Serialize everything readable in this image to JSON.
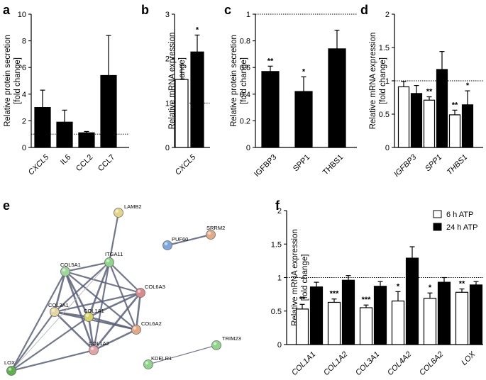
{
  "figure": {
    "panel_letters": [
      "a",
      "b",
      "c",
      "d",
      "e",
      "f"
    ],
    "legend": [
      {
        "label": "6 h ATP",
        "color": "#ffffff"
      },
      {
        "label": "24 h ATP",
        "color": "#000000"
      }
    ],
    "colors": {
      "bar_dark": "#000000",
      "bar_light": "#ffffff",
      "axis": "#000000"
    }
  },
  "chart_data": [
    {
      "id": "a",
      "type": "bar",
      "ylabel_lines": [
        "Relative protein secretion",
        "[fold change]"
      ],
      "ylim": [
        0,
        10
      ],
      "yticks": [
        0,
        2,
        4,
        6,
        8,
        10
      ],
      "reference_line": 1,
      "categories": [
        "CXCL5",
        "IL6",
        "CCL2",
        "CCL7"
      ],
      "category_italic": [
        true,
        false,
        false,
        false
      ],
      "series": [
        {
          "name": "24 h ATP",
          "values": [
            3.0,
            1.9,
            1.1,
            5.4
          ],
          "errors": [
            1.3,
            0.9,
            0.1,
            3.0
          ]
        }
      ],
      "significance": [
        {
          "series": 0,
          "text": [
            "",
            "",
            "",
            ""
          ]
        }
      ]
    },
    {
      "id": "b",
      "type": "bar",
      "ylabel_lines": [
        "Relative mRNA expression",
        "[fold change]"
      ],
      "ylim": [
        0,
        3
      ],
      "yticks": [
        0,
        1,
        2,
        3
      ],
      "reference_line": 1,
      "categories": [
        "CXCL5"
      ],
      "category_italic": [
        true
      ],
      "series": [
        {
          "name": "6 h ATP",
          "values": [
            1.53
          ],
          "errors": [
            0.33
          ]
        },
        {
          "name": "24 h ATP",
          "values": [
            2.15
          ],
          "errors": [
            0.38
          ]
        }
      ],
      "significance": [
        {
          "series": 1,
          "text": [
            "*"
          ]
        }
      ]
    },
    {
      "id": "c",
      "type": "bar",
      "ylabel_lines": [
        "Relative protein secretion",
        "[fold change]"
      ],
      "ylim": [
        0,
        1.0
      ],
      "yticks": [
        0,
        0.2,
        0.4,
        0.6,
        0.8,
        1.0
      ],
      "reference_line": 1.0,
      "categories": [
        "IGFBP3",
        "SPP1",
        "THBS1"
      ],
      "category_italic": [
        false,
        false,
        false
      ],
      "series": [
        {
          "name": "24 h ATP",
          "values": [
            0.57,
            0.42,
            0.74
          ],
          "errors": [
            0.04,
            0.11,
            0.14
          ]
        }
      ],
      "significance": [
        {
          "series": 0,
          "text": [
            "**",
            "*",
            ""
          ]
        }
      ]
    },
    {
      "id": "d",
      "type": "bar",
      "ylabel_lines": [
        "Relative mRNA expression",
        "[fold change]"
      ],
      "ylim": [
        0,
        2.0
      ],
      "yticks": [
        0,
        0.5,
        1.0,
        1.5,
        2.0
      ],
      "reference_line": 1.0,
      "categories": [
        "IGFBP3",
        "SPP1",
        "THBS1"
      ],
      "category_italic": [
        true,
        true,
        true
      ],
      "series": [
        {
          "name": "6 h ATP",
          "values": [
            0.91,
            0.71,
            0.49
          ],
          "errors": [
            0.08,
            0.05,
            0.07
          ]
        },
        {
          "name": "24 h ATP",
          "values": [
            0.81,
            1.17,
            0.64
          ],
          "errors": [
            0.12,
            0.27,
            0.21
          ]
        }
      ],
      "significance": [
        {
          "series": 0,
          "text": [
            "",
            "**",
            "**"
          ]
        },
        {
          "series": 1,
          "text": [
            "",
            "",
            "*"
          ]
        }
      ]
    },
    {
      "id": "e",
      "type": "network",
      "nodes": [
        {
          "name": "LAMB2",
          "color": "#e3d48a"
        },
        {
          "name": "ITGA11",
          "color": "#8fd48a"
        },
        {
          "name": "PUF60",
          "color": "#7ea7dd"
        },
        {
          "name": "SRRM2",
          "color": "#e0aa86"
        },
        {
          "name": "COL5A1",
          "color": "#9ed79a"
        },
        {
          "name": "COL6A3",
          "color": "#d98a8e"
        },
        {
          "name": "COL3A1",
          "color": "#e4d6a0"
        },
        {
          "name": "COL1A1",
          "color": "#d6d26a"
        },
        {
          "name": "COL6A2",
          "color": "#e4a887"
        },
        {
          "name": "COL1A2",
          "color": "#e2a3a6"
        },
        {
          "name": "KDELR1",
          "color": "#8fd48a"
        },
        {
          "name": "TRIM23",
          "color": "#8fd48a"
        },
        {
          "name": "LOX",
          "color": "#5fb04d"
        }
      ],
      "edges": [
        {
          "from": "LAMB2",
          "to": "ITGA11",
          "weight": 2
        },
        {
          "from": "PUF60",
          "to": "SRRM2",
          "weight": 2
        },
        {
          "from": "KDELR1",
          "to": "TRIM23",
          "weight": 1
        },
        {
          "from": "ITGA11",
          "to": "COL5A1",
          "weight": 2
        },
        {
          "from": "ITGA11",
          "to": "COL6A3",
          "weight": 2
        },
        {
          "from": "ITGA11",
          "to": "COL3A1",
          "weight": 2
        },
        {
          "from": "ITGA11",
          "to": "COL1A1",
          "weight": 3
        },
        {
          "from": "ITGA11",
          "to": "COL1A2",
          "weight": 2
        },
        {
          "from": "ITGA11",
          "to": "COL6A2",
          "weight": 2
        },
        {
          "from": "COL5A1",
          "to": "COL6A3",
          "weight": 2
        },
        {
          "from": "COL5A1",
          "to": "COL3A1",
          "weight": 3
        },
        {
          "from": "COL5A1",
          "to": "COL1A1",
          "weight": 3
        },
        {
          "from": "COL5A1",
          "to": "COL1A2",
          "weight": 3
        },
        {
          "from": "COL5A1",
          "to": "COL6A2",
          "weight": 2
        },
        {
          "from": "COL5A1",
          "to": "LOX",
          "weight": 2
        },
        {
          "from": "COL6A3",
          "to": "COL6A2",
          "weight": 3
        },
        {
          "from": "COL6A3",
          "to": "COL1A1",
          "weight": 3
        },
        {
          "from": "COL6A3",
          "to": "COL1A2",
          "weight": 3
        },
        {
          "from": "COL6A3",
          "to": "COL3A1",
          "weight": 2
        },
        {
          "from": "COL3A1",
          "to": "COL1A1",
          "weight": 3
        },
        {
          "from": "COL3A1",
          "to": "COL1A2",
          "weight": 3
        },
        {
          "from": "COL3A1",
          "to": "COL6A2",
          "weight": 2
        },
        {
          "from": "COL3A1",
          "to": "LOX",
          "weight": 2
        },
        {
          "from": "COL1A1",
          "to": "COL1A2",
          "weight": 3
        },
        {
          "from": "COL1A1",
          "to": "COL6A2",
          "weight": 3
        },
        {
          "from": "COL1A1",
          "to": "LOX",
          "weight": 2
        },
        {
          "from": "COL1A2",
          "to": "COL6A2",
          "weight": 3
        },
        {
          "from": "COL1A2",
          "to": "LOX",
          "weight": 2
        },
        {
          "from": "ITGA11",
          "to": "LOX",
          "weight": 1
        }
      ]
    },
    {
      "id": "f",
      "type": "bar",
      "ylabel_lines": [
        "Relative mRNA expression",
        "[fold change]"
      ],
      "ylim": [
        0,
        2.0
      ],
      "yticks": [
        0,
        0.5,
        1.0,
        1.5,
        2.0
      ],
      "reference_line": 1.0,
      "categories": [
        "COL1A1",
        "COL1A2",
        "COL3A1",
        "COL4A2",
        "COL6A2",
        "LOX"
      ],
      "category_italic": [
        true,
        true,
        true,
        true,
        true,
        true
      ],
      "series": [
        {
          "name": "6 h ATP",
          "values": [
            0.53,
            0.63,
            0.55,
            0.65,
            0.69,
            0.78
          ],
          "errors": [
            0.07,
            0.05,
            0.04,
            0.14,
            0.08,
            0.05
          ]
        },
        {
          "name": "24 h ATP",
          "values": [
            0.86,
            0.96,
            0.87,
            1.29,
            0.93,
            0.89
          ],
          "errors": [
            0.07,
            0.07,
            0.07,
            0.17,
            0.07,
            0.05
          ]
        }
      ],
      "significance": [
        {
          "series": 0,
          "text": [
            "**",
            "***",
            "***",
            "*",
            "*",
            "**"
          ]
        }
      ]
    }
  ]
}
